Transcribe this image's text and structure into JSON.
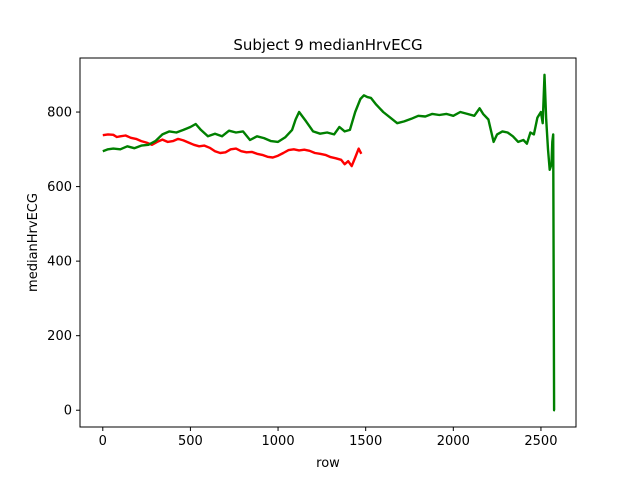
{
  "chart_data": {
    "type": "line",
    "title": "Subject 9 medianHrvECG",
    "xlabel": "row",
    "ylabel": "medianHrvECG",
    "xlim": [
      -130,
      2700
    ],
    "ylim": [
      -45,
      945
    ],
    "xticks": [
      0,
      500,
      1000,
      1500,
      2000,
      2500
    ],
    "yticks": [
      0,
      200,
      400,
      600,
      800
    ],
    "grid": false,
    "legend": "none",
    "series": [
      {
        "color": "#ff0000",
        "x": [
          0,
          30,
          60,
          80,
          100,
          130,
          160,
          190,
          220,
          250,
          280,
          310,
          340,
          370,
          400,
          430,
          460,
          490,
          520,
          550,
          580,
          610,
          640,
          670,
          700,
          730,
          760,
          790,
          820,
          850,
          880,
          910,
          940,
          970,
          1000,
          1030,
          1060,
          1090,
          1120,
          1150,
          1180,
          1210,
          1240,
          1270,
          1300,
          1330,
          1360,
          1380,
          1400,
          1420,
          1440,
          1460,
          1475
        ],
        "y": [
          738,
          740,
          739,
          733,
          735,
          737,
          731,
          728,
          722,
          718,
          712,
          720,
          726,
          720,
          722,
          728,
          724,
          718,
          712,
          708,
          710,
          704,
          695,
          690,
          692,
          700,
          702,
          695,
          692,
          693,
          688,
          685,
          680,
          678,
          683,
          690,
          698,
          700,
          697,
          699,
          696,
          690,
          688,
          685,
          679,
          676,
          672,
          660,
          668,
          655,
          678,
          702,
          688
        ]
      },
      {
        "color": "#008000",
        "x": [
          0,
          30,
          60,
          100,
          140,
          180,
          220,
          260,
          300,
          340,
          380,
          420,
          460,
          500,
          530,
          560,
          600,
          640,
          680,
          720,
          760,
          800,
          840,
          880,
          920,
          960,
          1000,
          1040,
          1080,
          1100,
          1120,
          1160,
          1200,
          1240,
          1280,
          1320,
          1350,
          1380,
          1410,
          1440,
          1470,
          1490,
          1510,
          1530,
          1560,
          1600,
          1640,
          1680,
          1720,
          1760,
          1800,
          1840,
          1880,
          1920,
          1960,
          2000,
          2040,
          2080,
          2120,
          2150,
          2170,
          2200,
          2230,
          2250,
          2280,
          2310,
          2340,
          2370,
          2400,
          2420,
          2440,
          2460,
          2480,
          2500,
          2510,
          2520,
          2530,
          2540,
          2550,
          2560,
          2565,
          2570,
          2575,
          2580
        ],
        "y": [
          695,
          700,
          702,
          700,
          708,
          703,
          710,
          712,
          722,
          740,
          748,
          745,
          752,
          760,
          768,
          752,
          735,
          742,
          735,
          750,
          745,
          748,
          725,
          735,
          730,
          722,
          720,
          732,
          752,
          780,
          800,
          775,
          748,
          742,
          745,
          740,
          760,
          748,
          752,
          800,
          835,
          845,
          840,
          838,
          820,
          800,
          785,
          770,
          775,
          782,
          790,
          788,
          795,
          792,
          795,
          790,
          800,
          795,
          790,
          810,
          795,
          780,
          720,
          740,
          748,
          745,
          735,
          720,
          725,
          715,
          745,
          740,
          785,
          800,
          770,
          900,
          780,
          700,
          645,
          660,
          720,
          740,
          0,
          0
        ]
      }
    ]
  }
}
